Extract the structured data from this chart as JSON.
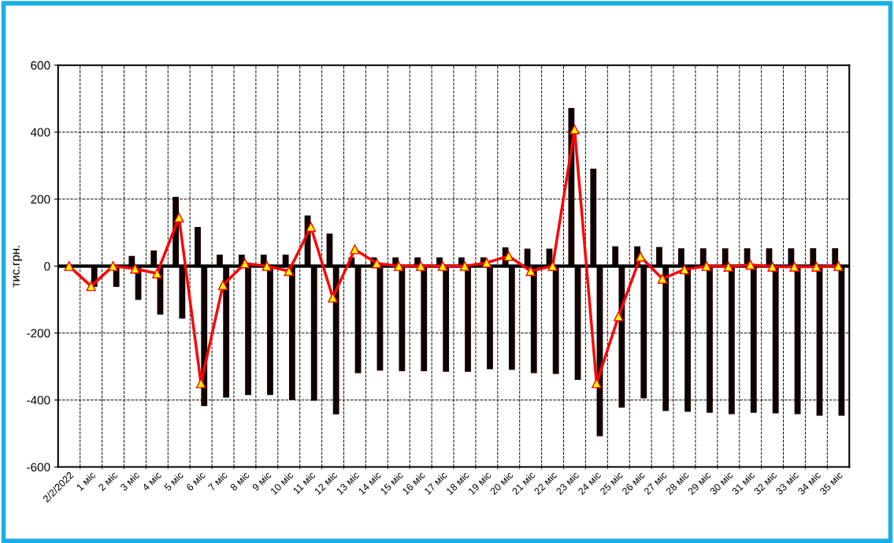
{
  "chart_data": {
    "type": "bar",
    "ylabel": "тис.грн.",
    "categories": [
      "2/2/2022",
      "1 міс",
      "2 міс",
      "3 міс",
      "4 міс",
      "5 міс",
      "6 міс",
      "7 міс",
      "8 міс",
      "9 міс",
      "10 міс",
      "11 міс",
      "12 міс",
      "13 міс",
      "14 міс",
      "15 міс",
      "16 міс",
      "17 міс",
      "18 міс",
      "19 міс",
      "20 міс",
      "21 міс",
      "22 міс",
      "23 міс",
      "24 міс",
      "25 міс",
      "26 міс",
      "27 міс",
      "28 міс",
      "29 міс",
      "30 міс",
      "31 міс",
      "32 міс",
      "33 міс",
      "34 міс",
      "35 міс"
    ],
    "series": [
      {
        "color": "#110000",
        "values": [
          0,
          0,
          0,
          30,
          47,
          207,
          117,
          34,
          34,
          34,
          34,
          151,
          97,
          26,
          26,
          26,
          26,
          26,
          26,
          26,
          56,
          52,
          52,
          472,
          291,
          59,
          59,
          57,
          53,
          53,
          53,
          53,
          53,
          53,
          53,
          53
        ]
      },
      {
        "color": "#110000",
        "values": [
          0,
          -62,
          -62,
          -101,
          -145,
          -157,
          -418,
          -393,
          -385,
          -385,
          -400,
          -402,
          -443,
          -320,
          -312,
          -314,
          -314,
          -316,
          -316,
          -308,
          -310,
          -320,
          -322,
          -340,
          -508,
          -423,
          -395,
          -433,
          -435,
          -438,
          -442,
          -438,
          -440,
          -442,
          -447,
          -447
        ]
      },
      {
        "type": "line",
        "color": "#ff0000",
        "marker": "triangle",
        "line_style": "solid",
        "values": [
          0,
          -60,
          0,
          -8,
          -22,
          145,
          -350,
          -57,
          8,
          0,
          -15,
          117,
          -94,
          50,
          8,
          0,
          0,
          0,
          0,
          10,
          30,
          -15,
          0,
          408,
          -350,
          -150,
          28,
          -38,
          -10,
          0,
          -2,
          4,
          -2,
          -2,
          -2,
          0
        ]
      }
    ],
    "ylim": [
      -600,
      600
    ],
    "yticks": [
      -600,
      -400,
      -200,
      0,
      200,
      400,
      600
    ],
    "ref_lines": [
      {
        "axis": "y",
        "value": 0,
        "color": "#000000"
      }
    ],
    "grid": true
  }
}
